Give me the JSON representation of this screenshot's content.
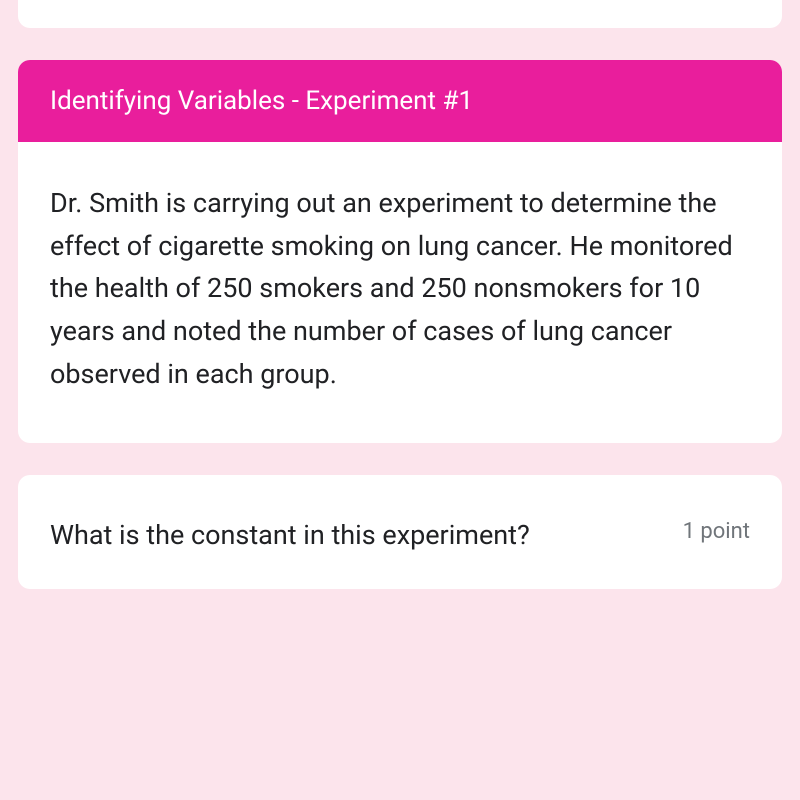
{
  "colors": {
    "background": "#fce4ec",
    "card_background": "#ffffff",
    "header_background": "#e91e9c",
    "header_text": "#ffffff",
    "body_text": "#202124",
    "muted_text": "#70757a"
  },
  "typography": {
    "header_fontsize": 26,
    "body_fontsize": 27,
    "points_fontsize": 22,
    "line_height": 1.58
  },
  "section": {
    "header_title": "Identifying Variables - Experiment #1",
    "description": "Dr. Smith is carrying out an experiment to determine the effect of cigarette smoking on lung cancer. He monitored the health of 250 smokers and 250 nonsmokers for 10 years and noted the number of cases of lung cancer observed in each group."
  },
  "question": {
    "text": "What is the constant in this experiment?",
    "points_label": "1 point"
  }
}
